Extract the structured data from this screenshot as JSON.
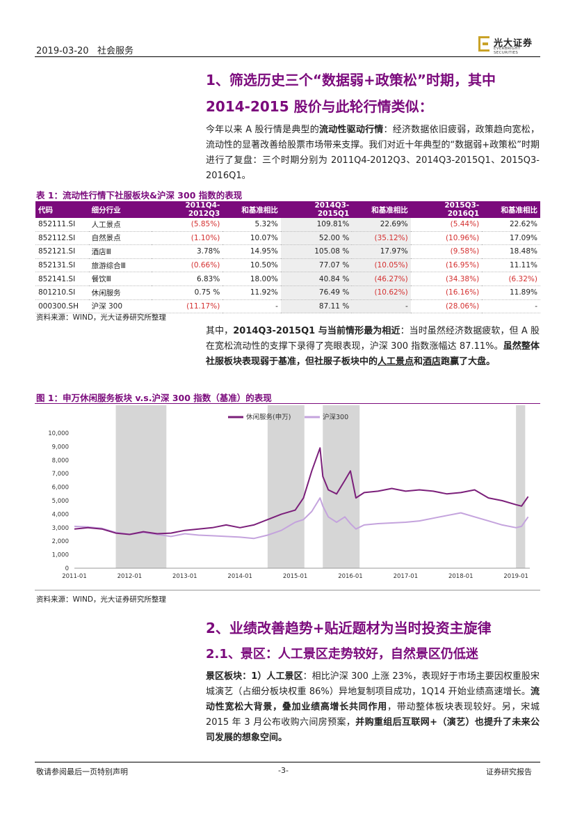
{
  "header": {
    "date": "2019-03-20",
    "sector": "社会服务",
    "logo_cn": "光大证券",
    "logo_en": "EVERBRIGHT SECURITIES"
  },
  "section1": {
    "title_line1": "1、筛选历史三个“数据弱+政策松”时期，其中",
    "title_line2": "2014-2015 股价与此轮行情类似：",
    "para": {
      "t1": "今年以来 A 股行情是典型的",
      "b1": "流动性驱动行情",
      "t2": "：经济数据依旧疲弱，政策趋向宽松，流动性的显著改善给股票市场带来支撑。我们对近十年典型的“数据弱+政策松”时期进行了复盘：三个时期分别为 2011Q4-2012Q3、2014Q3-2015Q1、2015Q3-2016Q1。"
    }
  },
  "table1": {
    "caption": "表 1：流动性行情下社服板块&沪深 300 指数的表现",
    "headers": [
      "代码",
      "细分行业",
      "2011Q4-2012Q3",
      "和基准相比",
      "2014Q3-2015Q1",
      "和基准相比",
      "2015Q3-2016Q1",
      "和基准相比"
    ],
    "rows": [
      [
        "852111.SI",
        "人工景点",
        "(5.85%)",
        "5.32%",
        "109.81%",
        "22.69%",
        "(5.44%)",
        "22.62%"
      ],
      [
        "852112.SI",
        "自然景点",
        "(1.10%)",
        "10.07%",
        "52.00 %",
        "(35.12%)",
        "(10.96%)",
        "17.09%"
      ],
      [
        "852121.SI",
        "酒店Ⅲ",
        "3.78%",
        "14.95%",
        "105.08 %",
        "17.97%",
        "(9.58%)",
        "18.48%"
      ],
      [
        "852131.SI",
        "旅游综合Ⅲ",
        "(0.66%)",
        "10.50%",
        "77.07 %",
        "(10.05%)",
        "(16.95%)",
        "11.11%"
      ],
      [
        "852141.SI",
        "餐饮Ⅲ",
        "6.83%",
        "18.00%",
        "40.84 %",
        "(46.27%)",
        "(34.38%)",
        "(6.32%)"
      ],
      [
        "801210.SI",
        "休闲服务",
        "0.75 %",
        "11.92%",
        "76.49 %",
        "(10.62%)",
        "(16.16%)",
        "11.89%"
      ],
      [
        "000300.SH",
        "沪深 300",
        "(11.17%)",
        "-",
        "87.11 %",
        "-",
        "(28.06%)",
        "-"
      ]
    ],
    "source": "资料来源：WIND，光大证券研究所整理"
  },
  "para2": {
    "t1": "其中，",
    "b1": "2014Q3-2015Q1 与当前情形最为相近",
    "t2": "：当时虽然经济数据疲软，但 A 股在宽松流动性的支撑下录得了亮眼表现，沪深 300 指数涨幅达 87.11%。",
    "b2": "虽然整体社服板块表现弱于基准，但社服子板块中的",
    "u1": "人工景点",
    "b3": "和",
    "u2": "酒店",
    "b4": "跑赢了大盘。"
  },
  "figure1": {
    "caption": "图 1：申万休闲服务板块 v.s.沪深 300 指数（基准）的表现",
    "source": "资料来源：WIND，光大证券研究所整理"
  },
  "chart_data": {
    "type": "line",
    "title": "",
    "xlabel": "",
    "ylabel": "",
    "ylim": [
      0,
      10000
    ],
    "yticks": [
      "0",
      "1,000",
      "2,000",
      "3,000",
      "4,000",
      "5,000",
      "6,000",
      "7,000",
      "8,000",
      "9,000",
      "10,000"
    ],
    "xticks": [
      "2011-01",
      "2012-01",
      "2013-01",
      "2014-01",
      "2015-01",
      "2016-01",
      "2017-01",
      "2018-01",
      "2019-01"
    ],
    "x": [
      2011.0,
      2011.25,
      2011.5,
      2011.75,
      2012.0,
      2012.25,
      2012.5,
      2012.75,
      2013.0,
      2013.25,
      2013.5,
      2013.75,
      2014.0,
      2014.25,
      2014.5,
      2014.75,
      2015.0,
      2015.15,
      2015.3,
      2015.45,
      2015.5,
      2015.6,
      2015.75,
      2015.9,
      2016.0,
      2016.1,
      2016.25,
      2016.5,
      2016.75,
      2017.0,
      2017.25,
      2017.5,
      2017.75,
      2018.0,
      2018.25,
      2018.5,
      2018.75,
      2019.0,
      2019.1,
      2019.22
    ],
    "series": [
      {
        "name": "休闲服务(申万)",
        "color": "#7b1f7a",
        "values": [
          2900,
          3000,
          2900,
          2600,
          2500,
          2700,
          2550,
          2600,
          2800,
          2900,
          3000,
          3200,
          3000,
          3200,
          3600,
          4000,
          4300,
          5200,
          7200,
          8900,
          6800,
          5800,
          5500,
          6500,
          7200,
          5200,
          5600,
          5700,
          5900,
          5700,
          5800,
          5700,
          5500,
          5600,
          5800,
          5200,
          5000,
          4700,
          4600,
          5300
        ]
      },
      {
        "name": "沪深300",
        "color": "#c4a3dd",
        "values": [
          3100,
          3050,
          2950,
          2650,
          2500,
          2650,
          2500,
          2350,
          2550,
          2450,
          2400,
          2350,
          2300,
          2200,
          2450,
          2800,
          3400,
          3600,
          4200,
          5200,
          4600,
          3800,
          3400,
          3800,
          3300,
          2900,
          3200,
          3300,
          3350,
          3400,
          3500,
          3700,
          3900,
          4100,
          3800,
          3500,
          3200,
          3000,
          3100,
          3800
        ]
      }
    ],
    "shaded_periods": [
      [
        "2011-10",
        "2012-09"
      ],
      [
        "2014-07",
        "2015-03"
      ],
      [
        "2015-07",
        "2016-03"
      ],
      [
        "2019-01",
        "2019-03"
      ]
    ]
  },
  "section2": {
    "title": "2、业绩改善趋势+贴近题材为当时投资主旋律",
    "subtitle": "2.1、景区：人工景区走势较好，自然景区仍低迷",
    "para": {
      "b1": "景区板块：1）人工景区",
      "t1": "：相比沪深 300 上涨 23%，表现好于市场主要因权重股宋城演艺（占细分板块权重 86%）异地复制项目成功，1Q14 开始业绩高速增长。",
      "b2": "流动性宽松大背景，叠加业绩高增长共同作用",
      "t2": "，带动整体板块表现较好。另，宋城 2015 年 3 月公布收购六间房预案，",
      "b3": "并购重组后互联网+（演艺）也提升了未来公司发展的想象空间。"
    }
  },
  "footer": {
    "left": "敬请参阅最后一页特别声明",
    "page": "-3-",
    "right": "证券研究报告"
  }
}
